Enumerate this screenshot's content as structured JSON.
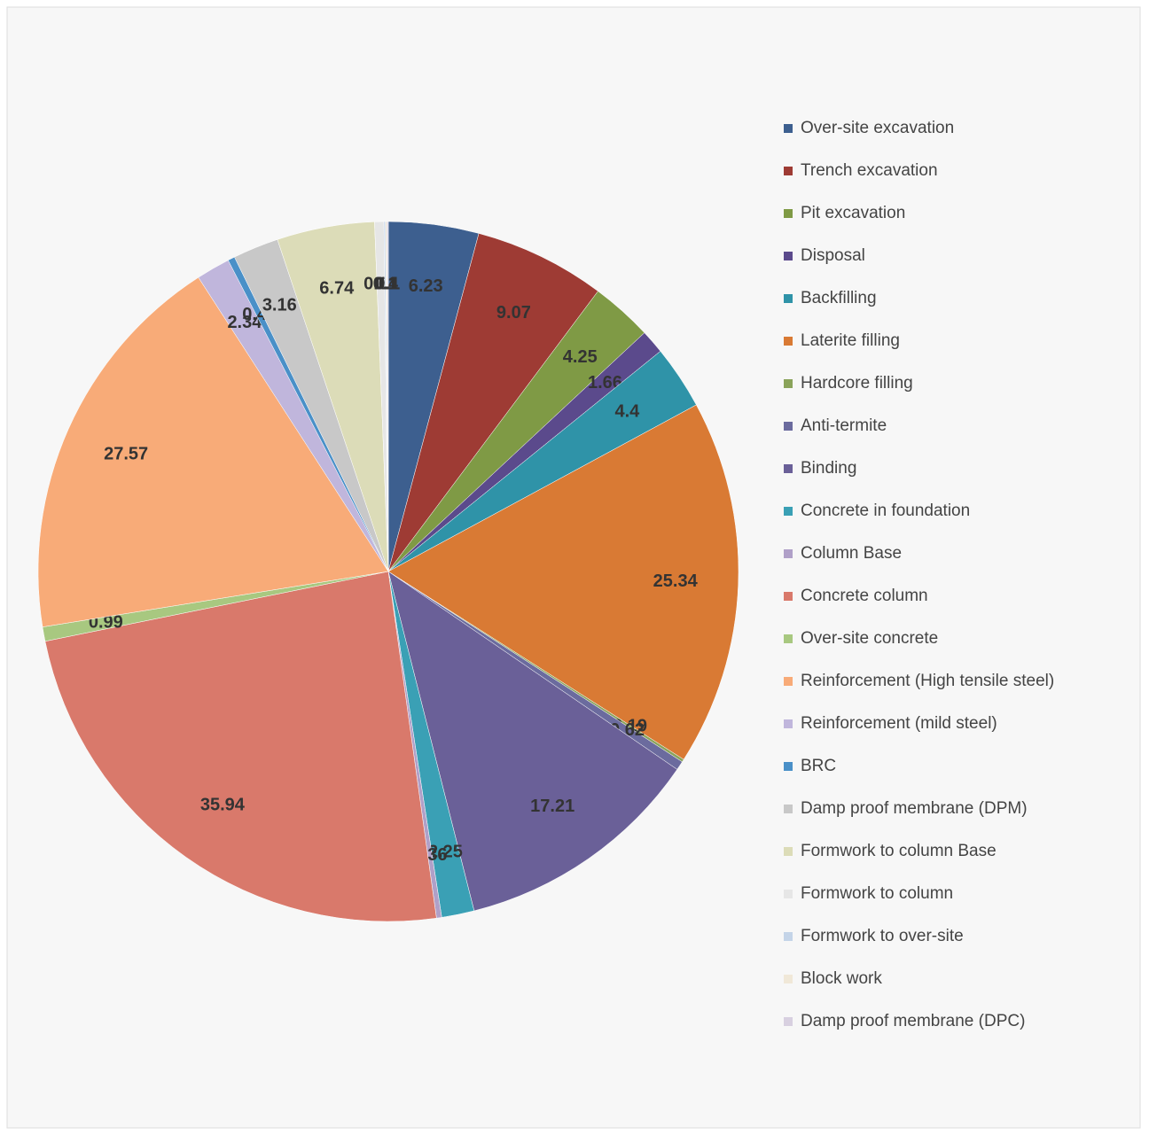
{
  "chart_data": {
    "type": "pie",
    "categories": [
      "Over-site excavation",
      "Trench excavation",
      "Pit excavation",
      "Disposal",
      "Backfilling",
      "Laterite filling",
      "Hardcore filling",
      "Anti-termite",
      "Binding",
      "Concrete in foundation",
      "Column Base",
      "Concrete column",
      "Over-site concrete",
      "Reinforcement  (High tensile steel)",
      "Reinforcement  (mild steel)",
      "BRC",
      "Damp proof membrane (DPM)",
      "Formwork to column Base",
      "Formwork to column",
      "Formwork to over-site",
      "Block work",
      "Damp proof membrane (DPC)"
    ],
    "values": [
      6.23,
      9.07,
      4.25,
      1.66,
      4.4,
      25.34,
      0.19,
      0.62,
      17.21,
      2.25,
      0.36,
      35.94,
      0.99,
      27.57,
      2.34,
      0.48,
      3.16,
      6.74,
      0.64,
      0.1,
      0.1,
      0.1
    ],
    "colors": [
      "#3d5f8f",
      "#9e3b34",
      "#7f9a45",
      "#5b4a8c",
      "#2f93a8",
      "#d97a34",
      "#8aa35a",
      "#6b6b9e",
      "#6a6098",
      "#3aa0b5",
      "#b0a0c8",
      "#d9796b",
      "#a8c880",
      "#f8ab78",
      "#c0b6dc",
      "#4a90c8",
      "#c8c8c8",
      "#dcdcb8",
      "#e6e6e6",
      "#c4d4e8",
      "#f0e8d8",
      "#d8d0e0"
    ],
    "legend": "right"
  }
}
